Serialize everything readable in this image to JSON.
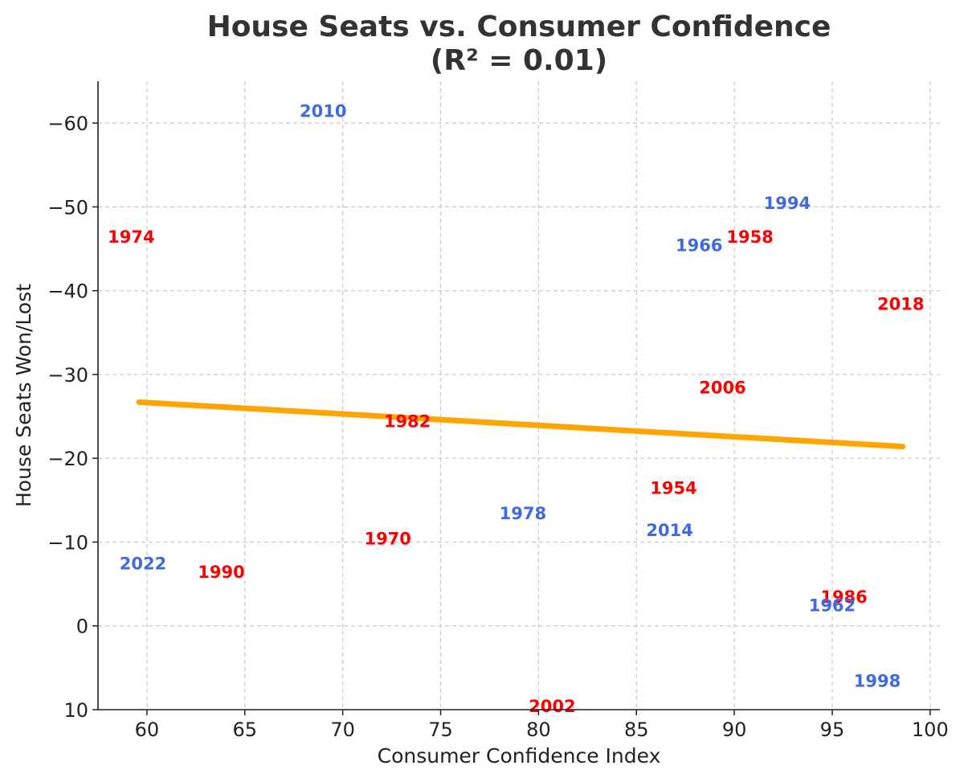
{
  "chart_data": {
    "type": "scatter",
    "title_line1": "House Seats vs. Consumer Confidence",
    "title_line2": "(R² = 0.01)",
    "xlabel": "Consumer Confidence Index",
    "ylabel": "House Seats Won/Lost",
    "xlim": [
      57.5,
      100.5
    ],
    "ylim": [
      10,
      -65
    ],
    "y_inverted": true,
    "grid": true,
    "x_ticks": [
      60,
      65,
      70,
      75,
      80,
      85,
      90,
      95,
      100
    ],
    "x_tick_labels": [
      "60",
      "65",
      "70",
      "75",
      "80",
      "85",
      "90",
      "95",
      "100"
    ],
    "y_ticks": [
      -60,
      -50,
      -40,
      -30,
      -20,
      -10,
      0,
      10
    ],
    "y_tick_labels": [
      "−60",
      "−50",
      "−40",
      "−30",
      "−20",
      "−10",
      "0",
      "10"
    ],
    "points": [
      {
        "label": "2010",
        "x": 67.8,
        "y": -61.5,
        "color": "#4169e1"
      },
      {
        "label": "1974",
        "x": 58.0,
        "y": -46.5,
        "color": "#ff0000"
      },
      {
        "label": "1994",
        "x": 91.5,
        "y": -50.5,
        "color": "#4169e1"
      },
      {
        "label": "1966",
        "x": 87.0,
        "y": -45.5,
        "color": "#4169e1"
      },
      {
        "label": "1958",
        "x": 89.6,
        "y": -46.5,
        "color": "#ff0000"
      },
      {
        "label": "2018",
        "x": 97.3,
        "y": -38.5,
        "color": "#ff0000"
      },
      {
        "label": "2006",
        "x": 88.2,
        "y": -28.5,
        "color": "#ff0000"
      },
      {
        "label": "1982",
        "x": 72.1,
        "y": -24.5,
        "color": "#ff0000"
      },
      {
        "label": "1954",
        "x": 85.7,
        "y": -16.5,
        "color": "#ff0000"
      },
      {
        "label": "1978",
        "x": 78.0,
        "y": -13.5,
        "color": "#4169e1"
      },
      {
        "label": "2014",
        "x": 85.5,
        "y": -11.5,
        "color": "#4169e1"
      },
      {
        "label": "1970",
        "x": 71.1,
        "y": -10.5,
        "color": "#ff0000"
      },
      {
        "label": "2022",
        "x": 58.6,
        "y": -7.5,
        "color": "#4169e1"
      },
      {
        "label": "1990",
        "x": 62.6,
        "y": -6.5,
        "color": "#ff0000"
      },
      {
        "label": "1986",
        "x": 94.4,
        "y": -3.5,
        "color": "#ff0000"
      },
      {
        "label": "1962",
        "x": 93.8,
        "y": -2.5,
        "color": "#4169e1"
      },
      {
        "label": "1998",
        "x": 96.1,
        "y": 6.5,
        "color": "#4169e1"
      },
      {
        "label": "2002",
        "x": 79.5,
        "y": 9.5,
        "color": "#ff0000"
      }
    ],
    "trendline": {
      "x": [
        59.6,
        98.6
      ],
      "y": [
        -26.7,
        -21.4
      ],
      "color": "#ffa500"
    }
  }
}
